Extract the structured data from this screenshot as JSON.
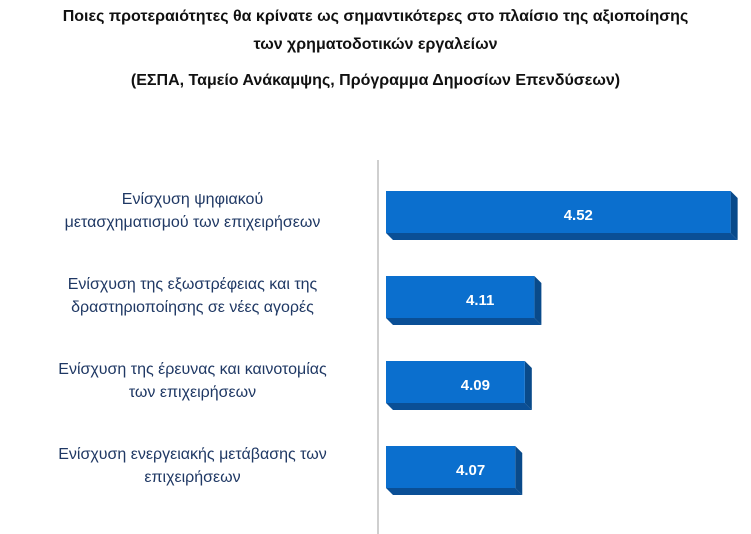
{
  "chart_data": {
    "type": "bar",
    "orientation": "horizontal",
    "title": [
      "Ποιες προτεραιότητες θα κρίνατε ως σημαντικότερες στο πλαίσιο της αξιοποίησης",
      "των χρηματοδοτικών εργαλείων",
      "(ΕΣΠΑ, Ταμείο Ανάκαμψης, Πρόγραμμα Δημοσίων Επενδύσεων)"
    ],
    "categories": [
      "Ενίσχυση ψηφιακού\nμετασχηματισμού των επιχειρήσεων",
      "Ενίσχυση της εξωστρέφειας και της\nδραστηριοποίησης σε νέες αγορές",
      "Ενίσχυση της έρευνας και καινοτομίας\nτων επιχειρήσεων",
      "Ενίσχυση ενεργειακής μετάβασης των\nεπιχειρήσεων"
    ],
    "values": [
      4.52,
      4.11,
      4.09,
      4.07
    ],
    "color": "#0b6fce",
    "xlim": [
      3.8,
      4.55
    ]
  }
}
